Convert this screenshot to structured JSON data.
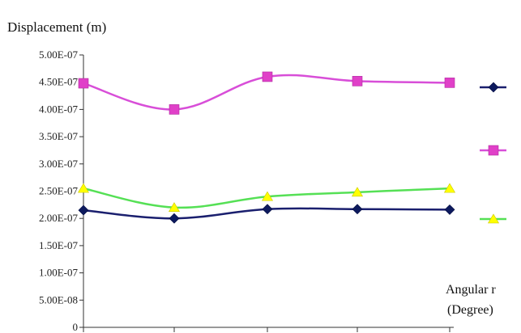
{
  "chart_data": {
    "type": "line",
    "ylabel": "Displacement (m)",
    "xlabel": "Angular r",
    "xlabel_unit": "(Degree)",
    "x": [
      0,
      1,
      2,
      3,
      4
    ],
    "ylim": [
      0,
      5e-07
    ],
    "yticks": [
      {
        "value": 0,
        "label": "0"
      },
      {
        "value": 5e-08,
        "label": "5.00E-08"
      },
      {
        "value": 1e-07,
        "label": "1.00E-07"
      },
      {
        "value": 1.5e-07,
        "label": "1.50E-07"
      },
      {
        "value": 2e-07,
        "label": "2.00E-07"
      },
      {
        "value": 2.5e-07,
        "label": "2.50E-07"
      },
      {
        "value": 3e-07,
        "label": "3.00E-07"
      },
      {
        "value": 3.5e-07,
        "label": "3.50E-07"
      },
      {
        "value": 4e-07,
        "label": "4.00E-07"
      },
      {
        "value": 4.5e-07,
        "label": "4.50E-07"
      },
      {
        "value": 5e-07,
        "label": "5.00E-07"
      }
    ],
    "grid": false,
    "legend_position": "right",
    "series": [
      {
        "values": [
          2.15e-07,
          2e-07,
          2.17e-07,
          2.17e-07,
          2.16e-07
        ],
        "color": "#1a1f6e",
        "marker": "diamond",
        "marker_color": "#0d1a5e"
      },
      {
        "values": [
          4.48e-07,
          4e-07,
          4.6e-07,
          4.52e-07,
          4.49e-07
        ],
        "color": "#d84ed8",
        "marker": "square",
        "marker_color": "#e040c8"
      },
      {
        "values": [
          2.55e-07,
          2.2e-07,
          2.4e-07,
          2.48e-07,
          2.55e-07
        ],
        "color": "#55e055",
        "marker": "triangle",
        "marker_color": "#ffff00"
      }
    ]
  }
}
